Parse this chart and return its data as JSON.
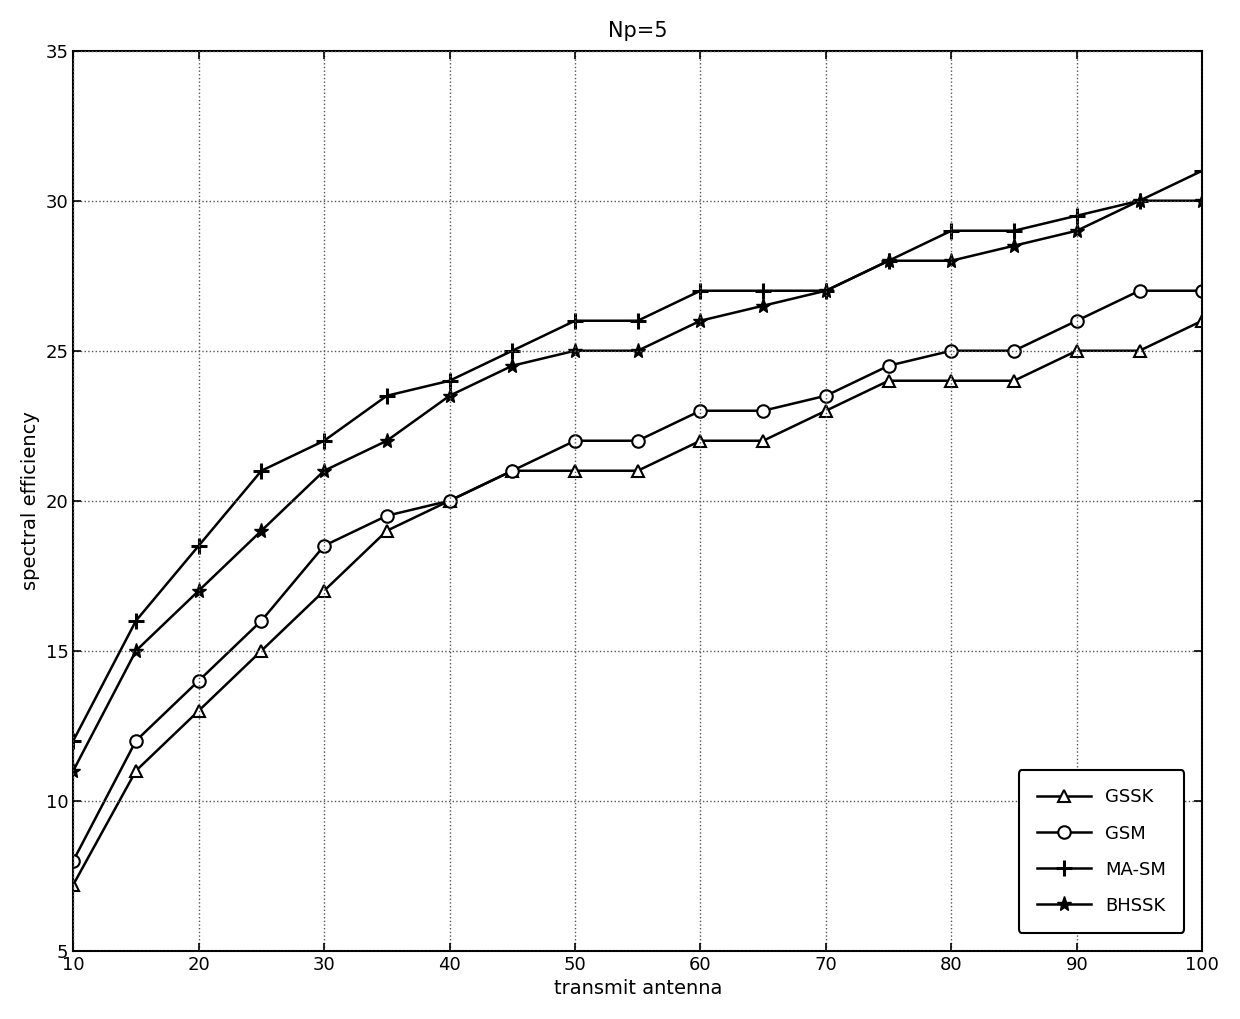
{
  "title": "Np=5",
  "xlabel": "transmit antenna",
  "ylabel": "spectral efficiency",
  "xlim": [
    10,
    100
  ],
  "ylim": [
    5,
    35
  ],
  "xticks": [
    10,
    20,
    30,
    40,
    50,
    60,
    70,
    80,
    90,
    100
  ],
  "yticks": [
    5,
    10,
    15,
    20,
    25,
    30,
    35
  ],
  "x": [
    10,
    15,
    20,
    25,
    30,
    35,
    40,
    45,
    50,
    55,
    60,
    65,
    70,
    75,
    80,
    85,
    90,
    95,
    100
  ],
  "GSSK": [
    7.2,
    11.0,
    13.0,
    15.0,
    17.0,
    19.0,
    20.0,
    21.0,
    21.0,
    21.0,
    22.0,
    22.0,
    23.0,
    24.0,
    24.0,
    24.0,
    25.0,
    25.0,
    26.0
  ],
  "GSM": [
    8.0,
    12.0,
    14.0,
    16.0,
    18.5,
    19.5,
    20.0,
    21.0,
    22.0,
    22.0,
    23.0,
    23.0,
    23.5,
    24.5,
    25.0,
    25.0,
    26.0,
    27.0,
    27.0
  ],
  "MA_SM": [
    12.0,
    16.0,
    18.5,
    21.0,
    22.0,
    23.5,
    24.0,
    25.0,
    26.0,
    26.0,
    27.0,
    27.0,
    27.0,
    28.0,
    29.0,
    29.0,
    29.5,
    30.0,
    31.0
  ],
  "BHSSK": [
    11.0,
    15.0,
    17.0,
    19.0,
    21.0,
    22.0,
    23.5,
    24.5,
    25.0,
    25.0,
    26.0,
    26.5,
    27.0,
    28.0,
    28.0,
    28.5,
    29.0,
    30.0,
    30.0
  ],
  "line_color": "#000000",
  "background_color": "#ffffff",
  "title_fontsize": 15,
  "label_fontsize": 14,
  "tick_fontsize": 13,
  "legend_fontsize": 13
}
